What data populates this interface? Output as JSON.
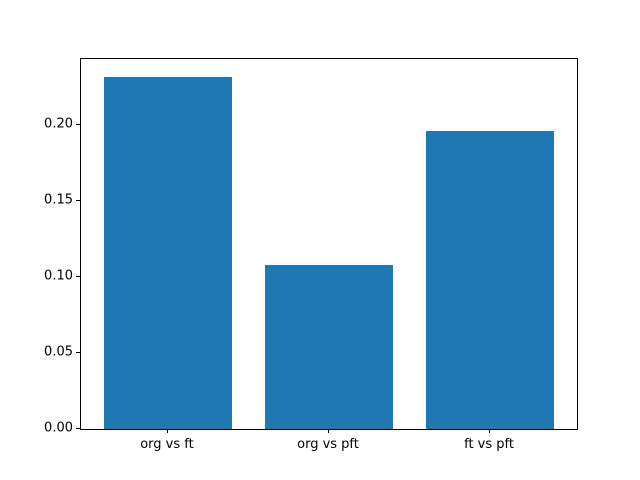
{
  "figure": {
    "background_color": "#ffffff",
    "axis_color": "#000000",
    "bar_color": "#1f77b4"
  },
  "chart_data": {
    "type": "bar",
    "title": "",
    "xlabel": "",
    "ylabel": "",
    "categories": [
      "org vs ft",
      "org vs pft",
      "ft vs pft"
    ],
    "values": [
      0.232,
      0.108,
      0.196
    ],
    "bar_width_data_units": 0.8,
    "ylim": [
      0,
      0.2436
    ],
    "yticks": [
      0.0,
      0.05,
      0.1,
      0.15,
      0.2
    ],
    "ytick_labels": [
      "0.00",
      "0.05",
      "0.10",
      "0.15",
      "0.20"
    ],
    "grid": false,
    "legend": null
  }
}
